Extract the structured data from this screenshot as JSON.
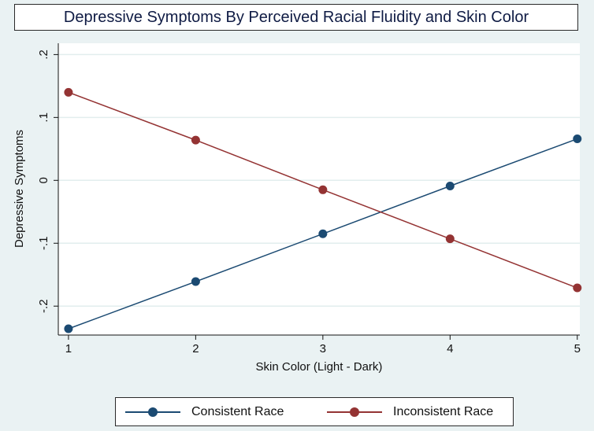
{
  "chart_data": {
    "type": "line",
    "title": "Depressive Symptoms By Perceived Racial Fluidity and Skin Color",
    "xlabel": "Skin Color (Light - Dark)",
    "ylabel": "Depressive Symptoms",
    "x": [
      1,
      2,
      3,
      4,
      5
    ],
    "xticks": [
      "1",
      "2",
      "3",
      "4",
      "5"
    ],
    "yticks": [
      {
        "value": -0.2,
        "label": "-.2"
      },
      {
        "value": -0.1,
        "label": "-.1"
      },
      {
        "value": 0,
        "label": "0"
      },
      {
        "value": 0.1,
        "label": ".1"
      },
      {
        "value": 0.2,
        "label": ".2"
      }
    ],
    "xlim": [
      0.92,
      5.02
    ],
    "ylim": [
      -0.246,
      0.218
    ],
    "grid": true,
    "legend_position": "bottom",
    "series": [
      {
        "name": "Consistent Race",
        "color": "#1b4a72",
        "values": [
          -0.236,
          -0.161,
          -0.085,
          -0.009,
          0.066
        ]
      },
      {
        "name": "Inconsistent Race",
        "color": "#943333",
        "values": [
          0.14,
          0.064,
          -0.015,
          -0.093,
          -0.171
        ]
      }
    ]
  },
  "colors": {
    "background": "#eaf2f3",
    "plot_area": "#ffffff",
    "grid": "#e2eeee",
    "title_text": "#0f1b44"
  }
}
